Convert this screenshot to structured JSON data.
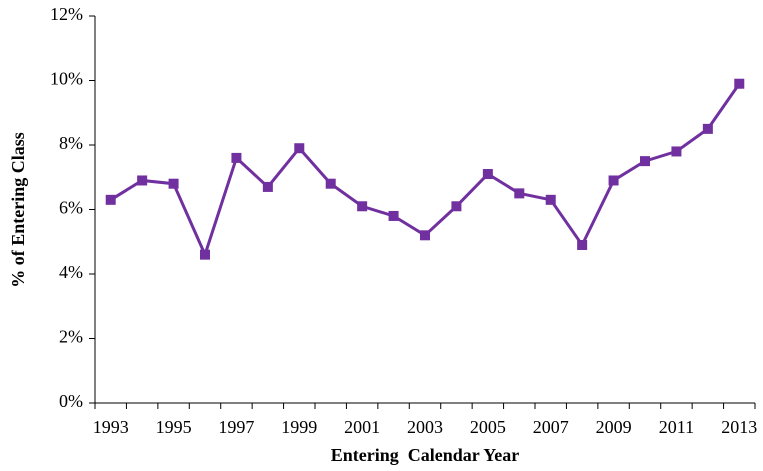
{
  "chart_data": {
    "type": "line",
    "xlabel": "Entering  Calendar Year",
    "ylabel": "% of Entering Class",
    "categories": [
      "1993",
      null,
      "1995",
      null,
      "1997",
      null,
      "1999",
      null,
      "2001",
      null,
      "2003",
      null,
      "2005",
      null,
      "2007",
      null,
      "2009",
      null,
      "2011",
      null,
      "2013"
    ],
    "series": [
      {
        "name": "% of Entering Class",
        "color": "#7030a0",
        "values": [
          6.3,
          6.9,
          6.8,
          4.6,
          7.6,
          6.7,
          7.9,
          6.8,
          6.1,
          5.8,
          5.2,
          6.1,
          7.1,
          6.5,
          6.3,
          4.9,
          6.9,
          7.5,
          7.8,
          8.5,
          9.9
        ]
      }
    ],
    "ylim": [
      0,
      12
    ],
    "yticks": [
      {
        "value": 0,
        "label": "0%"
      },
      {
        "value": 2,
        "label": "2%"
      },
      {
        "value": 4,
        "label": "4%"
      },
      {
        "value": 6,
        "label": "6%"
      },
      {
        "value": 8,
        "label": "8%"
      },
      {
        "value": 10,
        "label": "10%"
      },
      {
        "value": 12,
        "label": "12%"
      }
    ]
  }
}
